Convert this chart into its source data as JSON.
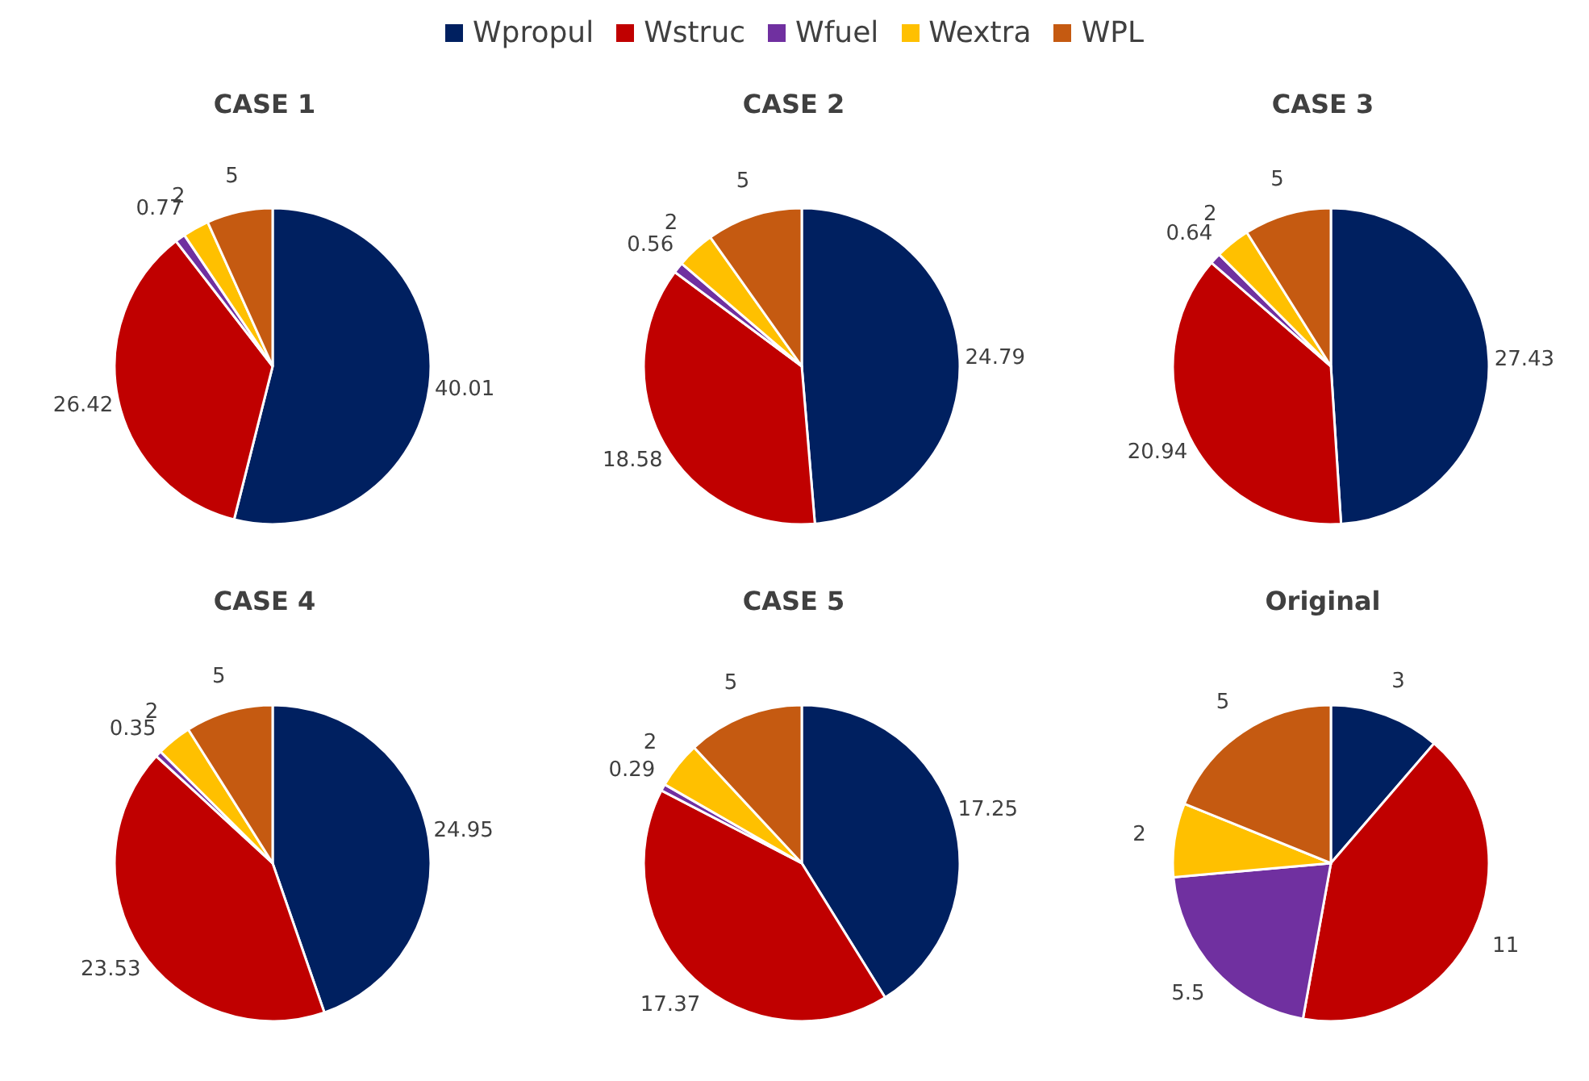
{
  "chart_data": [
    {
      "type": "pie",
      "title": "CASE 1",
      "categories": [
        "Wpropul",
        "Wstruc",
        "Wfuel",
        "Wextra",
        "WPL"
      ],
      "values": [
        40.01,
        26.42,
        0.77,
        2,
        5
      ],
      "colors": [
        "#002060",
        "#c00000",
        "#7030a0",
        "#ffc000",
        "#c55a11"
      ],
      "data_labels": true,
      "legend": "top"
    },
    {
      "type": "pie",
      "title": "CASE 2",
      "categories": [
        null,
        null,
        null,
        null,
        null
      ],
      "values": [
        24.79,
        18.58,
        0.56,
        2,
        5
      ],
      "colors": [
        "#002060",
        "#c00000",
        "#7030a0",
        "#ffc000",
        "#c55a11"
      ],
      "data_labels": true
    },
    {
      "type": "pie",
      "title": "CASE 3",
      "categories": [
        null,
        null,
        null,
        null,
        null
      ],
      "values": [
        27.43,
        20.94,
        0.64,
        2,
        5
      ],
      "colors": [
        "#002060",
        "#c00000",
        "#7030a0",
        "#ffc000",
        "#c55a11"
      ],
      "data_labels": true
    },
    {
      "type": "pie",
      "title": "CASE 4",
      "categories": [
        null,
        null,
        null,
        null,
        null
      ],
      "values": [
        24.95,
        23.53,
        0.35,
        2,
        5
      ],
      "colors": [
        "#002060",
        "#c00000",
        "#7030a0",
        "#ffc000",
        "#c55a11"
      ],
      "data_labels": true
    },
    {
      "type": "pie",
      "title": "CASE 5",
      "categories": [
        null,
        null,
        null,
        null,
        null
      ],
      "values": [
        17.25,
        17.37,
        0.29,
        2,
        5
      ],
      "colors": [
        "#002060",
        "#c00000",
        "#7030a0",
        "#ffc000",
        "#c55a11"
      ],
      "data_labels": true
    },
    {
      "type": "pie",
      "title": "Original",
      "categories": [
        null,
        null,
        null,
        null,
        null
      ],
      "values": [
        3,
        11,
        5.5,
        2,
        5
      ],
      "colors": [
        "#002060",
        "#c00000",
        "#7030a0",
        "#ffc000",
        "#c55a11"
      ],
      "data_labels": true
    }
  ]
}
